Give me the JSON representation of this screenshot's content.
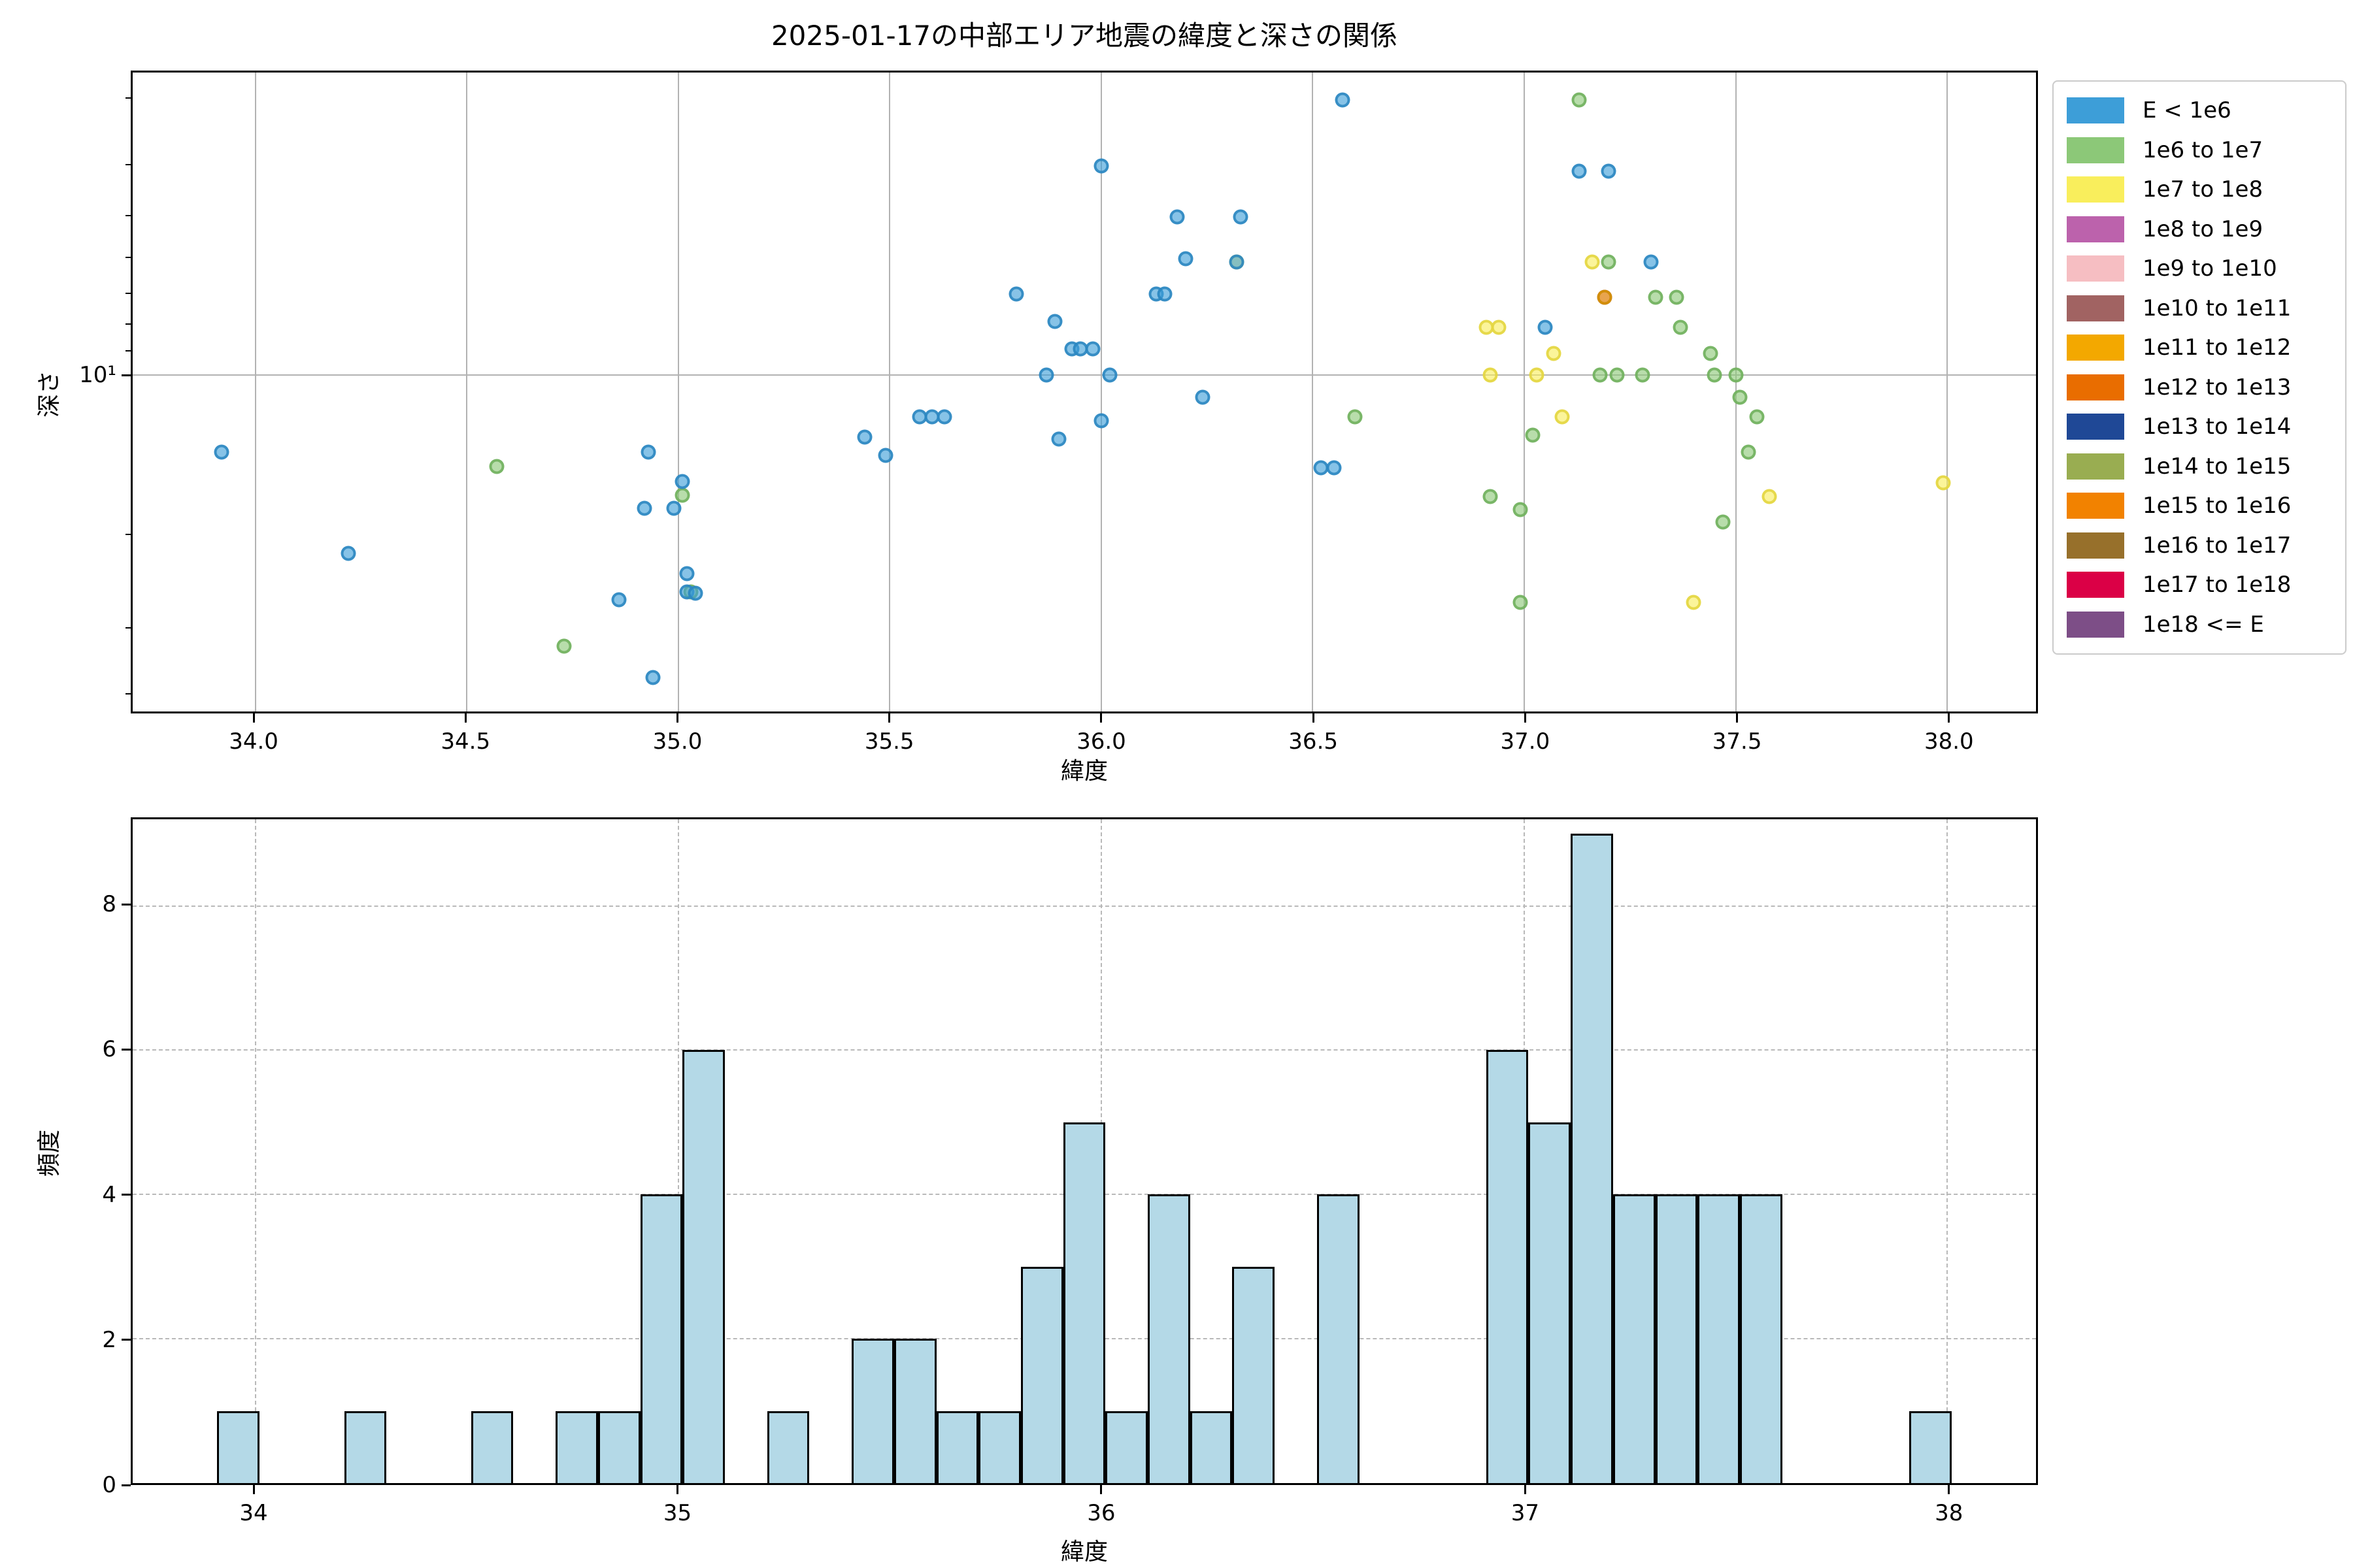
{
  "title": "2025-01-17の中部エリア地震の緯度と深さの関係",
  "scatter": {
    "xlabel": "緯度",
    "ylabel": "深さ",
    "ytick_major_label": "10¹"
  },
  "histogram": {
    "xlabel": "緯度",
    "ylabel": "頻度"
  },
  "legend": {
    "items": [
      {
        "label": "E < 1e6",
        "color": "#3d9ed8",
        "edge": "#2a86c0"
      },
      {
        "label": "1e6 to 1e7",
        "color": "#8cc878",
        "edge": "#6fb05c"
      },
      {
        "label": "1e7 to 1e8",
        "color": "#f9ee5c",
        "edge": "#e3d53e"
      },
      {
        "label": "1e8 to 1e9",
        "color": "#bc62ac",
        "edge": "#a34b94"
      },
      {
        "label": "1e9 to 1e10",
        "color": "#f6bec2",
        "edge": "#e0a4a8"
      },
      {
        "label": "1e10 to 1e11",
        "color": "#a16362",
        "edge": "#874e4d"
      },
      {
        "label": "1e11 to 1e12",
        "color": "#f3a800",
        "edge": "#d18f00"
      },
      {
        "label": "1e12 to 1e13",
        "color": "#e96d00",
        "edge": "#c75c00"
      },
      {
        "label": "1e13 to 1e14",
        "color": "#1f4896",
        "edge": "#16377a"
      },
      {
        "label": "1e14 to 1e15",
        "color": "#99ad51",
        "edge": "#7f923e"
      },
      {
        "label": "1e15 to 1e16",
        "color": "#f28200",
        "edge": "#cf6e00"
      },
      {
        "label": "1e16 to 1e17",
        "color": "#97702b",
        "edge": "#7c5a20"
      },
      {
        "label": "1e17 to 1e18",
        "color": "#db0046",
        "edge": "#b80039"
      },
      {
        "label": "1e18 <= E",
        "color": "#7d4e87",
        "edge": "#663d6f"
      }
    ]
  },
  "chart_data": [
    {
      "type": "scatter",
      "title": "2025-01-17の中部エリア地震の緯度と深さの関係",
      "xlabel": "緯度",
      "ylabel": "深さ",
      "xlim": [
        33.71,
        38.21
      ],
      "ylim": [
        2.66,
        43.5
      ],
      "yscale": "log",
      "y_inverted": true,
      "grid": true,
      "xticks": [
        {
          "v": 34.0,
          "label": "34.0"
        },
        {
          "v": 34.5,
          "label": "34.5"
        },
        {
          "v": 35.0,
          "label": "35.0"
        },
        {
          "v": 35.5,
          "label": "35.5"
        },
        {
          "v": 36.0,
          "label": "36.0"
        },
        {
          "v": 36.5,
          "label": "36.5"
        },
        {
          "v": 37.0,
          "label": "37.0"
        },
        {
          "v": 37.5,
          "label": "37.5"
        },
        {
          "v": 38.0,
          "label": "38.0"
        }
      ],
      "ytick_major": {
        "v": 10,
        "label": "10¹"
      },
      "yticks_minor": [
        3,
        4,
        5,
        6,
        7,
        8,
        9,
        20,
        30,
        40
      ],
      "legend_position": "outside-right",
      "series": [
        {
          "name": "1e8 to 1e9",
          "points": [
            [
              37.19,
              7.1
            ]
          ]
        },
        {
          "name": "1e7 to 1e8",
          "points": [
            [
              36.32,
              6.1
            ],
            [
              36.91,
              8.1
            ],
            [
              36.94,
              8.1
            ],
            [
              36.92,
              10.0
            ],
            [
              37.03,
              10.0
            ],
            [
              37.07,
              9.1
            ],
            [
              37.09,
              12.0
            ],
            [
              37.16,
              6.1
            ],
            [
              37.4,
              27.0
            ],
            [
              37.58,
              17.0
            ],
            [
              37.99,
              16.0
            ]
          ]
        },
        {
          "name": "1e6 to 1e7",
          "points": [
            [
              34.57,
              14.9
            ],
            [
              34.73,
              32.7
            ],
            [
              35.01,
              16.9
            ],
            [
              35.03,
              25.8
            ],
            [
              36.6,
              12.0
            ],
            [
              36.92,
              17.0
            ],
            [
              36.99,
              18.0
            ],
            [
              36.99,
              27.0
            ],
            [
              37.02,
              13.0
            ],
            [
              37.13,
              3.0
            ],
            [
              37.18,
              10.0
            ],
            [
              37.2,
              6.1
            ],
            [
              37.22,
              10.0
            ],
            [
              37.28,
              10.0
            ],
            [
              37.31,
              7.1
            ],
            [
              37.36,
              7.1
            ],
            [
              37.37,
              8.1
            ],
            [
              37.44,
              9.1
            ],
            [
              37.45,
              10.0
            ],
            [
              37.47,
              19.0
            ],
            [
              37.5,
              10.0
            ],
            [
              37.51,
              11.0
            ],
            [
              37.53,
              14.0
            ],
            [
              37.55,
              12.0
            ]
          ]
        },
        {
          "name": "1e11 to 1e12",
          "points": [
            [
              37.19,
              7.1
            ]
          ]
        },
        {
          "name": "E < 1e6",
          "points": [
            [
              33.92,
              14.0
            ],
            [
              34.22,
              21.8
            ],
            [
              34.86,
              26.7
            ],
            [
              34.92,
              17.9
            ],
            [
              34.93,
              14.0
            ],
            [
              34.94,
              37.5
            ],
            [
              34.99,
              17.9
            ],
            [
              35.01,
              15.9
            ],
            [
              35.02,
              23.8
            ],
            [
              35.02,
              25.8
            ],
            [
              35.04,
              25.9
            ],
            [
              35.44,
              13.1
            ],
            [
              35.49,
              14.2
            ],
            [
              35.57,
              12.0
            ],
            [
              35.6,
              12.0
            ],
            [
              35.63,
              12.0
            ],
            [
              35.8,
              7.0
            ],
            [
              35.87,
              10.0
            ],
            [
              35.89,
              7.9
            ],
            [
              35.9,
              13.2
            ],
            [
              35.93,
              8.9
            ],
            [
              35.95,
              8.9
            ],
            [
              35.98,
              8.9
            ],
            [
              36.0,
              4.0
            ],
            [
              36.0,
              12.2
            ],
            [
              36.02,
              10.0
            ],
            [
              36.13,
              7.0
            ],
            [
              36.15,
              7.0
            ],
            [
              36.18,
              5.0
            ],
            [
              36.2,
              6.0
            ],
            [
              36.24,
              11.0
            ],
            [
              36.32,
              6.1
            ],
            [
              36.33,
              5.0
            ],
            [
              36.52,
              15.0
            ],
            [
              36.55,
              15.0
            ],
            [
              36.57,
              3.0
            ],
            [
              37.05,
              8.1
            ],
            [
              37.13,
              4.1
            ],
            [
              37.2,
              4.1
            ],
            [
              37.3,
              6.1
            ]
          ]
        }
      ]
    },
    {
      "type": "bar",
      "xlabel": "緯度",
      "ylabel": "頻度",
      "xlim": [
        33.71,
        38.21
      ],
      "ylim": [
        0,
        9.2
      ],
      "bin_width": 0.1,
      "bar_color": "#b4d9e7",
      "grid": "dashed",
      "xticks": [
        {
          "v": 34,
          "label": "34"
        },
        {
          "v": 35,
          "label": "35"
        },
        {
          "v": 36,
          "label": "36"
        },
        {
          "v": 37,
          "label": "37"
        },
        {
          "v": 38,
          "label": "38"
        }
      ],
      "yticks": [
        {
          "v": 0,
          "label": "0"
        },
        {
          "v": 2,
          "label": "2"
        },
        {
          "v": 4,
          "label": "4"
        },
        {
          "v": 6,
          "label": "6"
        },
        {
          "v": 8,
          "label": "8"
        }
      ],
      "bins": [
        {
          "start": 33.91,
          "count": 1
        },
        {
          "start": 34.21,
          "count": 1
        },
        {
          "start": 34.51,
          "count": 1
        },
        {
          "start": 34.71,
          "count": 1
        },
        {
          "start": 34.81,
          "count": 1
        },
        {
          "start": 34.91,
          "count": 4
        },
        {
          "start": 35.01,
          "count": 6
        },
        {
          "start": 35.21,
          "count": 1
        },
        {
          "start": 35.41,
          "count": 2
        },
        {
          "start": 35.51,
          "count": 2
        },
        {
          "start": 35.61,
          "count": 1
        },
        {
          "start": 35.71,
          "count": 1
        },
        {
          "start": 35.81,
          "count": 3
        },
        {
          "start": 35.91,
          "count": 5
        },
        {
          "start": 36.01,
          "count": 1
        },
        {
          "start": 36.11,
          "count": 4
        },
        {
          "start": 36.21,
          "count": 1
        },
        {
          "start": 36.31,
          "count": 3
        },
        {
          "start": 36.51,
          "count": 4
        },
        {
          "start": 36.91,
          "count": 6
        },
        {
          "start": 37.01,
          "count": 5
        },
        {
          "start": 37.11,
          "count": 9
        },
        {
          "start": 37.21,
          "count": 4
        },
        {
          "start": 37.31,
          "count": 4
        },
        {
          "start": 37.41,
          "count": 4
        },
        {
          "start": 37.51,
          "count": 4
        },
        {
          "start": 37.91,
          "count": 1
        }
      ]
    }
  ]
}
